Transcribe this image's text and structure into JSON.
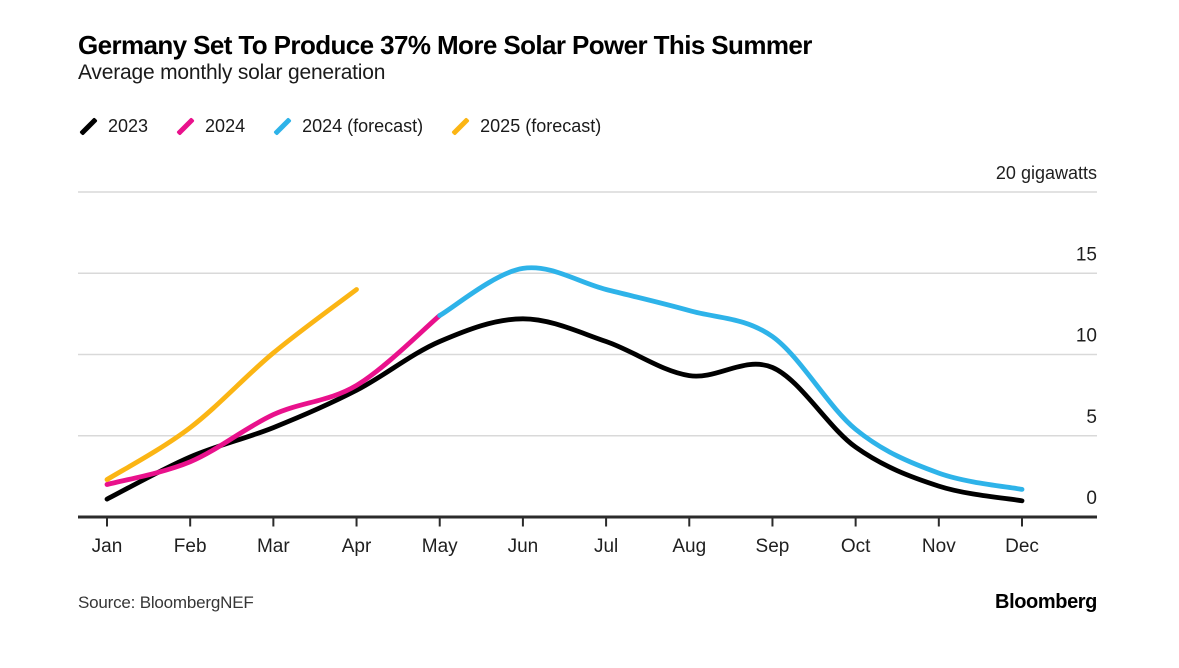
{
  "header": {
    "title": "Germany Set To Produce 37% More Solar Power This Summer",
    "subtitle": "Average monthly solar generation"
  },
  "legend": {
    "items": [
      {
        "label": "2023",
        "color": "#000000"
      },
      {
        "label": "2024",
        "color": "#e9118c"
      },
      {
        "label": "2024 (forecast)",
        "color": "#2eb3e9"
      },
      {
        "label": "2025 (forecast)",
        "color": "#fbb514"
      }
    ]
  },
  "chart_data": {
    "type": "line",
    "title": "Germany Set To Produce 37% More Solar Power This Summer",
    "subtitle": "Average monthly solar generation",
    "unit": "gigawatts",
    "categories": [
      "Jan",
      "Feb",
      "Mar",
      "Apr",
      "May",
      "Jun",
      "Jul",
      "Aug",
      "Sep",
      "Oct",
      "Nov",
      "Dec"
    ],
    "ylim": [
      0,
      20
    ],
    "yticks": [
      0,
      5,
      10,
      15,
      20
    ],
    "ytick_labels": [
      "0",
      "5",
      "10",
      "15",
      "20 gigawatts"
    ],
    "grid": true,
    "legend_position": "top",
    "series": [
      {
        "name": "2023",
        "color": "#000000",
        "start_month": "Jan",
        "values": [
          1.1,
          3.7,
          5.5,
          7.8,
          10.8,
          12.2,
          10.8,
          8.7,
          9.2,
          4.3,
          1.9,
          1.0
        ]
      },
      {
        "name": "2024",
        "color": "#e9118c",
        "start_month": "Jan",
        "values": [
          2.0,
          3.4,
          6.3,
          8.1,
          12.4
        ]
      },
      {
        "name": "2024 (forecast)",
        "color": "#2eb3e9",
        "start_month": "May",
        "values": [
          12.4,
          15.3,
          14.0,
          12.7,
          11.1,
          5.4,
          2.7,
          1.7
        ]
      },
      {
        "name": "2025 (forecast)",
        "color": "#fbb514",
        "start_month": "Jan",
        "values": [
          2.3,
          5.5,
          10.1,
          14.0
        ]
      }
    ],
    "colors": {
      "gridline": "#d9d9d9",
      "axis": "#2b2b2b",
      "background": "#ffffff"
    }
  },
  "footer": {
    "source": "Source: BloombergNEF",
    "brand": "Bloomberg"
  }
}
